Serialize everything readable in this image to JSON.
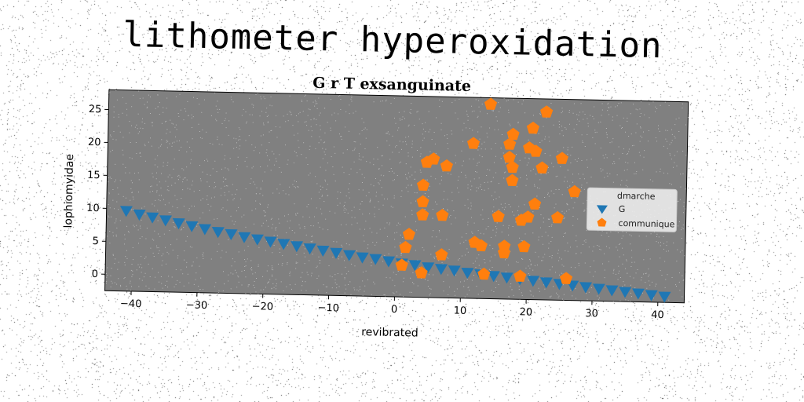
{
  "figure": {
    "suptitle": "lithometer hyperoxidation"
  },
  "colors": {
    "background": "#ffffff",
    "plot_bg": "#808080",
    "series_G": "#1f77b4",
    "series_communique": "#ff7f0e"
  },
  "chart_data": {
    "type": "scatter",
    "title": "G r T exsanguinate",
    "xlabel": "revibrated",
    "ylabel": "lophiomyidae",
    "xlim": [
      -44,
      44
    ],
    "ylim": [
      -2.5,
      28
    ],
    "xticks": [
      -40,
      -30,
      -20,
      -10,
      0,
      10,
      20,
      30,
      40
    ],
    "yticks": [
      0,
      5,
      10,
      15,
      20,
      25
    ],
    "grid": false,
    "legend": {
      "title": "dmarche",
      "placement": "right"
    },
    "series": [
      {
        "name": "G",
        "marker": "triangle-down",
        "points": [
          [
            -41,
            9.7
          ],
          [
            -39,
            9.2
          ],
          [
            -37,
            8.8
          ],
          [
            -35,
            8.4
          ],
          [
            -33,
            8.0
          ],
          [
            -31,
            7.6
          ],
          [
            -29,
            7.2
          ],
          [
            -27,
            6.8
          ],
          [
            -25,
            6.5
          ],
          [
            -23,
            6.1
          ],
          [
            -21,
            5.8
          ],
          [
            -19,
            5.5
          ],
          [
            -17,
            5.2
          ],
          [
            -15,
            4.9
          ],
          [
            -13,
            4.6
          ],
          [
            -11,
            4.3
          ],
          [
            -9,
            4.0
          ],
          [
            -7,
            3.7
          ],
          [
            -5,
            3.4
          ],
          [
            -3,
            3.2
          ],
          [
            -1,
            2.9
          ],
          [
            1,
            2.6
          ],
          [
            3,
            2.4
          ],
          [
            5,
            2.1
          ],
          [
            7,
            1.9
          ],
          [
            9,
            1.7
          ],
          [
            11,
            1.4
          ],
          [
            13,
            1.2
          ],
          [
            15,
            1.0
          ],
          [
            17,
            0.8
          ],
          [
            19,
            0.6
          ],
          [
            21,
            0.4
          ],
          [
            23,
            0.2
          ],
          [
            25,
            0.0
          ],
          [
            27,
            -0.2
          ],
          [
            29,
            -0.4
          ],
          [
            31,
            -0.6
          ],
          [
            33,
            -0.8
          ],
          [
            35,
            -1.0
          ],
          [
            37,
            -1.2
          ],
          [
            39,
            -1.4
          ],
          [
            41,
            -1.6
          ]
        ]
      },
      {
        "name": "communique",
        "marker": "pentagon",
        "points": [
          [
            1,
            2.3
          ],
          [
            1.5,
            5
          ],
          [
            2,
            7
          ],
          [
            4,
            1.2
          ],
          [
            4,
            10
          ],
          [
            4,
            12
          ],
          [
            4,
            14.5
          ],
          [
            4.5,
            18
          ],
          [
            5.5,
            18.5
          ],
          [
            7,
            4
          ],
          [
            7,
            10
          ],
          [
            7.5,
            17.5
          ],
          [
            11.5,
            21
          ],
          [
            12,
            6
          ],
          [
            13,
            5.5
          ],
          [
            13.5,
            1.2
          ],
          [
            14,
            27
          ],
          [
            15.5,
            10
          ],
          [
            16.5,
            4.5
          ],
          [
            16.5,
            5.5
          ],
          [
            17,
            19
          ],
          [
            17,
            21
          ],
          [
            17.5,
            22.5
          ],
          [
            17.5,
            15.5
          ],
          [
            17.5,
            17.5
          ],
          [
            19,
            1
          ],
          [
            19,
            9.5
          ],
          [
            19.5,
            5.5
          ],
          [
            20,
            20.5
          ],
          [
            20,
            10
          ],
          [
            20.5,
            23.5
          ],
          [
            21,
            20
          ],
          [
            21,
            12
          ],
          [
            22,
            17.5
          ],
          [
            22.5,
            26
          ],
          [
            24.5,
            10
          ],
          [
            25,
            19
          ],
          [
            26,
            0.8
          ],
          [
            27,
            14
          ]
        ]
      }
    ]
  }
}
